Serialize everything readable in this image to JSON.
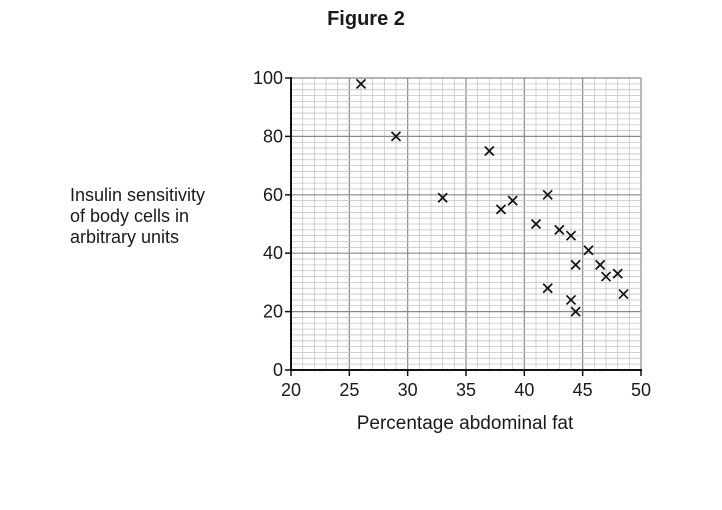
{
  "figure_title": "Figure 2",
  "chart_data": {
    "type": "scatter",
    "xlabel": "Percentage abdominal fat",
    "ylabel_lines": [
      "Insulin sensitivity",
      "of body cells in",
      "arbitrary units"
    ],
    "xlim": [
      20,
      50
    ],
    "ylim": [
      0,
      100
    ],
    "x_ticks": [
      20,
      25,
      30,
      35,
      40,
      45,
      50
    ],
    "y_ticks": [
      0,
      20,
      40,
      60,
      80,
      100
    ],
    "grid": true,
    "marker": "x",
    "points": [
      {
        "x": 26,
        "y": 98
      },
      {
        "x": 29,
        "y": 80
      },
      {
        "x": 33,
        "y": 59
      },
      {
        "x": 37,
        "y": 75
      },
      {
        "x": 38,
        "y": 55
      },
      {
        "x": 39,
        "y": 58
      },
      {
        "x": 41,
        "y": 50
      },
      {
        "x": 42,
        "y": 60
      },
      {
        "x": 42,
        "y": 28
      },
      {
        "x": 43,
        "y": 48
      },
      {
        "x": 44,
        "y": 46
      },
      {
        "x": 44,
        "y": 24
      },
      {
        "x": 44.4,
        "y": 36
      },
      {
        "x": 44.4,
        "y": 20
      },
      {
        "x": 45.5,
        "y": 41
      },
      {
        "x": 46.5,
        "y": 36
      },
      {
        "x": 47,
        "y": 32
      },
      {
        "x": 48,
        "y": 33
      },
      {
        "x": 48.5,
        "y": 26
      }
    ]
  }
}
